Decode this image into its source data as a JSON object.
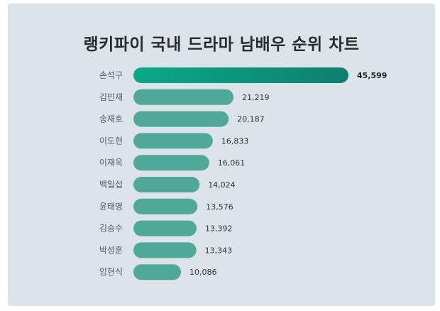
{
  "chart_data": {
    "type": "bar",
    "orientation": "horizontal",
    "title": "랭키파이 국내 드라마 남배우 순위 차트",
    "categories": [
      "손석구",
      "김민재",
      "송재호",
      "이도현",
      "이재욱",
      "백일섭",
      "윤태영",
      "김승수",
      "박성훈",
      "임현식"
    ],
    "values": [
      45599,
      21219,
      20187,
      16833,
      16061,
      14024,
      13576,
      13392,
      13343,
      10086
    ],
    "value_labels": [
      "45,599",
      "21,219",
      "20,187",
      "16,833",
      "16,061",
      "14,024",
      "13,576",
      "13,392",
      "13,343",
      "10,086"
    ],
    "xlim": [
      0,
      45599
    ],
    "grid": false,
    "legend": "none",
    "colors": {
      "background": "#dce3e9",
      "bar": "#4fa898",
      "top_bar_start": "#0aa889",
      "top_bar_end": "#0f7f70"
    }
  }
}
